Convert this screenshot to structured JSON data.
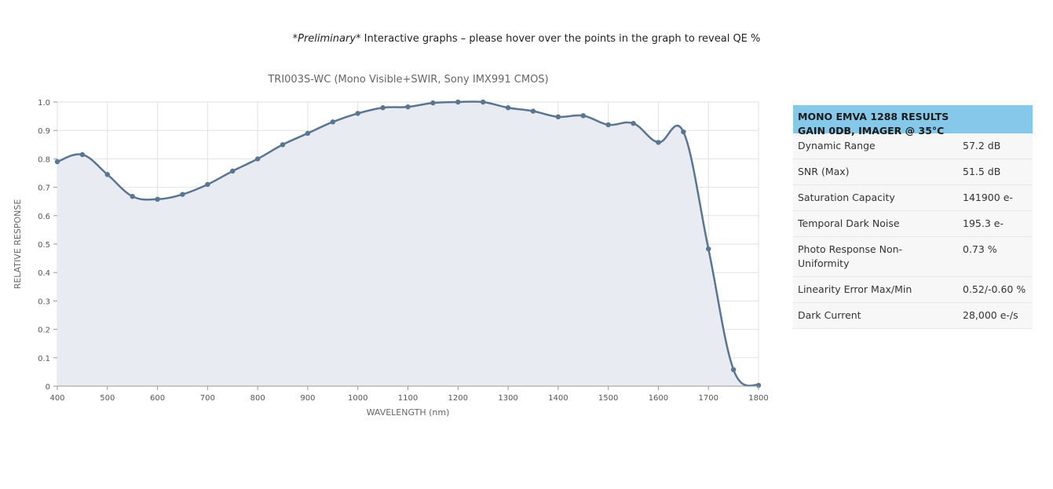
{
  "note": {
    "italic": "*Preliminary*",
    "text": " Interactive graphs – please hover over the points in the graph to reveal QE %"
  },
  "chart_data": {
    "type": "line",
    "title": "TRI003S-WC (Mono Visible+SWIR, Sony IMX991 CMOS)",
    "xlabel": "WAVELENGTH (nm)",
    "ylabel": "RELATIVE RESPONSE",
    "xlim": [
      400,
      1800
    ],
    "ylim": [
      0,
      1.0
    ],
    "x_ticks": [
      400,
      500,
      600,
      700,
      800,
      900,
      1000,
      1100,
      1200,
      1300,
      1400,
      1500,
      1600,
      1700,
      1800
    ],
    "y_ticks": [
      {
        "value": 0,
        "label": "0"
      },
      {
        "value": 0.1,
        "label": "0.1"
      },
      {
        "value": 0.2,
        "label": "0.2"
      },
      {
        "value": 0.3,
        "label": "0.3"
      },
      {
        "value": 0.4,
        "label": "0.4"
      },
      {
        "value": 0.5,
        "label": "0.5"
      },
      {
        "value": 0.6,
        "label": "0.6"
      },
      {
        "value": 0.7,
        "label": "0.7"
      },
      {
        "value": 0.8,
        "label": "0.8"
      },
      {
        "value": 0.9,
        "label": "0.9"
      },
      {
        "value": 1.0,
        "label": "1.0"
      }
    ],
    "grid": true,
    "series": [
      {
        "x": [
          400,
          450,
          500,
          550,
          600,
          650,
          700,
          750,
          800,
          850,
          900,
          950,
          1000,
          1050,
          1100,
          1150,
          1200,
          1250,
          1300,
          1350,
          1400,
          1450,
          1500,
          1550,
          1600,
          1650,
          1700,
          1750,
          1800
        ],
        "y": [
          0.79,
          0.815,
          0.745,
          0.668,
          0.658,
          0.675,
          0.71,
          0.757,
          0.8,
          0.85,
          0.89,
          0.93,
          0.96,
          0.98,
          0.983,
          0.997,
          1.0,
          1.0,
          0.98,
          0.968,
          0.948,
          0.952,
          0.92,
          0.925,
          0.858,
          0.895,
          0.483,
          0.058,
          0.003
        ]
      }
    ],
    "colors": {
      "line": "#5a7590",
      "fill": "#e9ebf3",
      "grid": "#e2e2e2"
    }
  },
  "results": {
    "header_line1": "MONO EMVA 1288 RESULTS",
    "header_line2": "GAIN 0DB, IMAGER @ 35°C",
    "rows": [
      {
        "label": "Dynamic Range",
        "value": "57.2 dB"
      },
      {
        "label": "SNR (Max)",
        "value": "51.5 dB"
      },
      {
        "label": "Saturation Capacity",
        "value": "141900 e-"
      },
      {
        "label": "Temporal Dark Noise",
        "value": "195.3 e-"
      },
      {
        "label": "Photo Response Non-Uniformity",
        "value": "0.73 %"
      },
      {
        "label": "Linearity Error Max/Min",
        "value": "0.52/-0.60 %"
      },
      {
        "label": "Dark Current",
        "value": "28,000 e-/s"
      }
    ],
    "header_color": "#85c8ea"
  }
}
